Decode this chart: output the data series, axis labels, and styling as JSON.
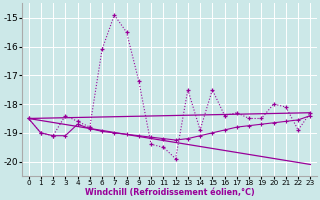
{
  "xlabel": "Windchill (Refroidissement éolien,°C)",
  "background_color": "#cce8e8",
  "grid_color": "#ffffff",
  "line_color": "#990099",
  "xlim": [
    -0.5,
    23.5
  ],
  "ylim": [
    -20.5,
    -14.5
  ],
  "yticks": [
    -20,
    -19,
    -18,
    -17,
    -16,
    -15
  ],
  "xticks": [
    0,
    1,
    2,
    3,
    4,
    5,
    6,
    7,
    8,
    9,
    10,
    11,
    12,
    13,
    14,
    15,
    16,
    17,
    18,
    19,
    20,
    21,
    22,
    23
  ],
  "series_dotted": [
    -18.5,
    -19.0,
    -19.1,
    -18.4,
    -18.6,
    -18.8,
    -16.1,
    -14.9,
    -15.5,
    -17.2,
    -19.4,
    -19.5,
    -19.9,
    -17.5,
    -18.9,
    -17.5,
    -18.4,
    -18.3,
    -18.5,
    -18.5,
    -18.0,
    -18.1,
    -18.9,
    -18.3
  ],
  "series_flat": [
    -18.5,
    -19.0,
    -19.1,
    -19.1,
    -18.7,
    -18.85,
    -18.95,
    -19.0,
    -19.05,
    -19.1,
    -19.15,
    -19.2,
    -19.25,
    -19.2,
    -19.1,
    -19.0,
    -18.9,
    -18.8,
    -18.75,
    -18.7,
    -18.65,
    -18.6,
    -18.55,
    -18.4
  ],
  "trend1_x": [
    0,
    23
  ],
  "trend1_y": [
    -18.5,
    -18.3
  ],
  "trend2_x": [
    0,
    23
  ],
  "trend2_y": [
    -18.5,
    -20.1
  ]
}
